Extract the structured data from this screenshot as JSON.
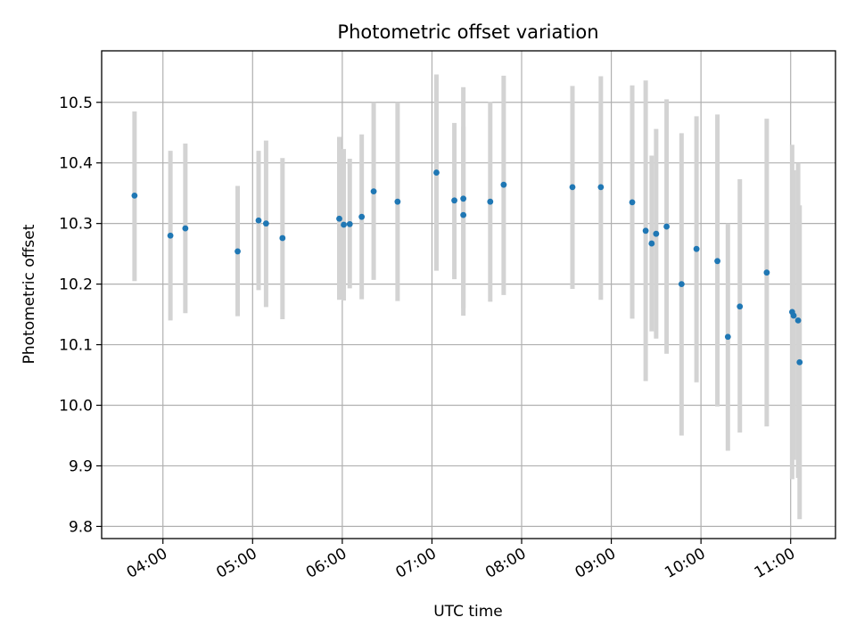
{
  "chart_data": {
    "type": "scatter",
    "title": "Photometric offset variation",
    "xlabel": "UTC time",
    "ylabel": "Photometric offset",
    "x_ticks": [
      "04:00",
      "05:00",
      "06:00",
      "07:00",
      "08:00",
      "09:00",
      "10:00",
      "11:00"
    ],
    "y_ticks": [
      "9.8",
      "9.9",
      "10.0",
      "10.1",
      "10.2",
      "10.3",
      "10.4",
      "10.5"
    ],
    "xlim": [
      "03:19",
      "11:30"
    ],
    "ylim": [
      9.78,
      10.585
    ],
    "grid": true,
    "colors": {
      "point": "#1f77b4",
      "errorbar": "#d3d3d3"
    },
    "points": [
      {
        "t": "03:41",
        "y": 10.346,
        "lo": 10.205,
        "hi": 10.485
      },
      {
        "t": "04:05",
        "y": 10.28,
        "lo": 10.14,
        "hi": 10.42
      },
      {
        "t": "04:15",
        "y": 10.292,
        "lo": 10.152,
        "hi": 10.432
      },
      {
        "t": "04:50",
        "y": 10.254,
        "lo": 10.147,
        "hi": 10.362
      },
      {
        "t": "05:04",
        "y": 10.305,
        "lo": 10.19,
        "hi": 10.42
      },
      {
        "t": "05:09",
        "y": 10.3,
        "lo": 10.162,
        "hi": 10.437
      },
      {
        "t": "05:20",
        "y": 10.276,
        "lo": 10.142,
        "hi": 10.408
      },
      {
        "t": "05:58",
        "y": 10.308,
        "lo": 10.174,
        "hi": 10.443
      },
      {
        "t": "06:01",
        "y": 10.298,
        "lo": 10.173,
        "hi": 10.423
      },
      {
        "t": "06:05",
        "y": 10.299,
        "lo": 10.193,
        "hi": 10.407
      },
      {
        "t": "06:13",
        "y": 10.311,
        "lo": 10.175,
        "hi": 10.447
      },
      {
        "t": "06:21",
        "y": 10.353,
        "lo": 10.207,
        "hi": 10.5
      },
      {
        "t": "06:37",
        "y": 10.336,
        "lo": 10.172,
        "hi": 10.5
      },
      {
        "t": "07:03",
        "y": 10.384,
        "lo": 10.222,
        "hi": 10.546
      },
      {
        "t": "07:15",
        "y": 10.338,
        "lo": 10.208,
        "hi": 10.466
      },
      {
        "t": "07:21",
        "y": 10.341,
        "lo": 10.148,
        "hi": 10.525
      },
      {
        "t": "07:21",
        "y": 10.314,
        "lo": 10.16,
        "hi": 10.46
      },
      {
        "t": "07:39",
        "y": 10.336,
        "lo": 10.171,
        "hi": 10.501
      },
      {
        "t": "07:48",
        "y": 10.364,
        "lo": 10.182,
        "hi": 10.544
      },
      {
        "t": "08:34",
        "y": 10.36,
        "lo": 10.192,
        "hi": 10.527
      },
      {
        "t": "08:53",
        "y": 10.36,
        "lo": 10.174,
        "hi": 10.543
      },
      {
        "t": "09:14",
        "y": 10.335,
        "lo": 10.143,
        "hi": 10.528
      },
      {
        "t": "09:23",
        "y": 10.288,
        "lo": 10.04,
        "hi": 10.536
      },
      {
        "t": "09:27",
        "y": 10.267,
        "lo": 10.122,
        "hi": 10.412
      },
      {
        "t": "09:30",
        "y": 10.283,
        "lo": 10.11,
        "hi": 10.456
      },
      {
        "t": "09:37",
        "y": 10.295,
        "lo": 10.085,
        "hi": 10.505
      },
      {
        "t": "09:47",
        "y": 10.2,
        "lo": 9.95,
        "hi": 10.449
      },
      {
        "t": "09:57",
        "y": 10.258,
        "lo": 10.038,
        "hi": 10.477
      },
      {
        "t": "10:11",
        "y": 10.238,
        "lo": 9.998,
        "hi": 10.48
      },
      {
        "t": "10:18",
        "y": 10.113,
        "lo": 9.925,
        "hi": 10.3
      },
      {
        "t": "10:26",
        "y": 10.163,
        "lo": 9.955,
        "hi": 10.373
      },
      {
        "t": "10:44",
        "y": 10.219,
        "lo": 9.965,
        "hi": 10.473
      },
      {
        "t": "11:01",
        "y": 10.154,
        "lo": 9.878,
        "hi": 10.43
      },
      {
        "t": "11:02",
        "y": 10.148,
        "lo": 9.91,
        "hi": 10.388
      },
      {
        "t": "11:05",
        "y": 10.14,
        "lo": 9.88,
        "hi": 10.4
      },
      {
        "t": "11:06",
        "y": 10.071,
        "lo": 9.812,
        "hi": 10.33
      }
    ]
  }
}
